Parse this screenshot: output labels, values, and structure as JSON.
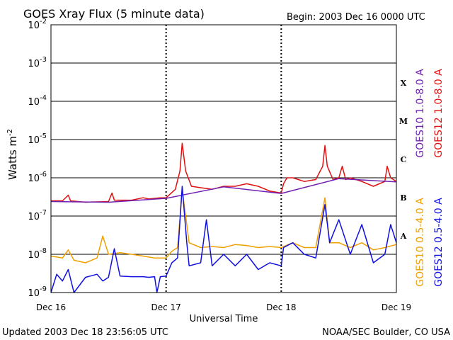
{
  "chart_data": {
    "type": "line",
    "title": "GOES Xray Flux (5 minute data)",
    "begin_label": "Begin:  2003 Dec 16 0000 UTC",
    "xlabel": "Universal Time",
    "ylabel": "Watts m",
    "ylabel_sup": "-2",
    "y_scale": "log",
    "ylim": [
      1e-09,
      0.01
    ],
    "y_ticks": [
      {
        "base": "10",
        "exp": "-9",
        "value": 1e-09
      },
      {
        "base": "10",
        "exp": "-8",
        "value": 1e-08
      },
      {
        "base": "10",
        "exp": "-7",
        "value": 1e-07
      },
      {
        "base": "10",
        "exp": "-6",
        "value": 1e-06
      },
      {
        "base": "10",
        "exp": "-5",
        "value": 1e-05
      },
      {
        "base": "10",
        "exp": "-4",
        "value": 0.0001
      },
      {
        "base": "10",
        "exp": "-3",
        "value": 0.001
      },
      {
        "base": "10",
        "exp": "-2",
        "value": 0.01
      }
    ],
    "x_ticks": [
      "Dec 16",
      "Dec 17",
      "Dec 18",
      "Dec 19"
    ],
    "x_days": 3,
    "flare_classes": [
      {
        "label": "X",
        "value": 0.0003
      },
      {
        "label": "M",
        "value": 3e-05
      },
      {
        "label": "C",
        "value": 3e-06
      },
      {
        "label": "B",
        "value": 3e-07
      },
      {
        "label": "A",
        "value": 3e-08
      }
    ],
    "grid": true,
    "legend_position": "right",
    "series": [
      {
        "name": "GOES12 1.0-8.0 A",
        "color": "#e01010",
        "points": [
          [
            0,
            2.5e-07
          ],
          [
            0.1,
            2.5e-07
          ],
          [
            0.15,
            3.5e-07
          ],
          [
            0.17,
            2.5e-07
          ],
          [
            0.3,
            2.3e-07
          ],
          [
            0.5,
            2.4e-07
          ],
          [
            0.53,
            4e-07
          ],
          [
            0.55,
            2.6e-07
          ],
          [
            0.7,
            2.6e-07
          ],
          [
            0.8,
            3e-07
          ],
          [
            0.85,
            2.8e-07
          ],
          [
            0.95,
            3e-07
          ],
          [
            1.0,
            3e-07
          ],
          [
            1.08,
            5e-07
          ],
          [
            1.12,
            1.5e-06
          ],
          [
            1.14,
            8e-06
          ],
          [
            1.17,
            1.5e-06
          ],
          [
            1.22,
            6e-07
          ],
          [
            1.3,
            5.5e-07
          ],
          [
            1.4,
            5e-07
          ],
          [
            1.5,
            6e-07
          ],
          [
            1.6,
            6e-07
          ],
          [
            1.7,
            7e-07
          ],
          [
            1.8,
            6e-07
          ],
          [
            1.9,
            4.5e-07
          ],
          [
            2.0,
            4e-07
          ],
          [
            2.02,
            7e-07
          ],
          [
            2.05,
            1e-06
          ],
          [
            2.1,
            1e-06
          ],
          [
            2.2,
            8e-07
          ],
          [
            2.3,
            9e-07
          ],
          [
            2.36,
            2e-06
          ],
          [
            2.38,
            7e-06
          ],
          [
            2.4,
            2e-06
          ],
          [
            2.45,
            9e-07
          ],
          [
            2.5,
            1e-06
          ],
          [
            2.53,
            2e-06
          ],
          [
            2.56,
            9e-07
          ],
          [
            2.6,
            1e-06
          ],
          [
            2.7,
            8e-07
          ],
          [
            2.8,
            6e-07
          ],
          [
            2.9,
            8e-07
          ],
          [
            2.92,
            2e-06
          ],
          [
            2.95,
            1e-06
          ],
          [
            3.0,
            8e-07
          ]
        ]
      },
      {
        "name": "GOES10 1.0-8.0 A",
        "color": "#7020b0",
        "points": [
          [
            0,
            2.4e-07
          ],
          [
            0.5,
            2.3e-07
          ],
          [
            1.0,
            2.9e-07
          ],
          [
            1.5,
            5.8e-07
          ],
          [
            2.0,
            3.9e-07
          ],
          [
            2.5,
            9.5e-07
          ],
          [
            3.0,
            7.8e-07
          ]
        ]
      },
      {
        "name": "GOES10 0.5-4.0 A",
        "color": "#f0a000",
        "points": [
          [
            0,
            9e-09
          ],
          [
            0.1,
            8e-09
          ],
          [
            0.15,
            1.3e-08
          ],
          [
            0.2,
            7e-09
          ],
          [
            0.3,
            6e-09
          ],
          [
            0.4,
            8e-09
          ],
          [
            0.45,
            3e-08
          ],
          [
            0.5,
            1e-08
          ],
          [
            0.6,
            1.1e-08
          ],
          [
            0.7,
            1e-08
          ],
          [
            0.8,
            9e-09
          ],
          [
            0.9,
            8e-09
          ],
          [
            1.0,
            8e-09
          ],
          [
            1.05,
            1.2e-08
          ],
          [
            1.1,
            1.5e-08
          ],
          [
            1.14,
            5e-07
          ],
          [
            1.2,
            2e-08
          ],
          [
            1.3,
            1.5e-08
          ],
          [
            1.4,
            1.6e-08
          ],
          [
            1.5,
            1.5e-08
          ],
          [
            1.6,
            1.8e-08
          ],
          [
            1.7,
            1.7e-08
          ],
          [
            1.8,
            1.5e-08
          ],
          [
            1.9,
            1.6e-08
          ],
          [
            2.0,
            1.5e-08
          ],
          [
            2.1,
            2e-08
          ],
          [
            2.2,
            1.5e-08
          ],
          [
            2.3,
            1.5e-08
          ],
          [
            2.38,
            3e-07
          ],
          [
            2.42,
            2e-08
          ],
          [
            2.5,
            2e-08
          ],
          [
            2.6,
            1.5e-08
          ],
          [
            2.7,
            2e-08
          ],
          [
            2.8,
            1.3e-08
          ],
          [
            2.9,
            1.5e-08
          ],
          [
            3.0,
            1.8e-08
          ]
        ]
      },
      {
        "name": "GOES12 0.5-4.0 A",
        "color": "#1010e0",
        "points": [
          [
            0,
            1e-09
          ],
          [
            0.05,
            3e-09
          ],
          [
            0.1,
            2e-09
          ],
          [
            0.15,
            4e-09
          ],
          [
            0.2,
            1e-09
          ],
          [
            0.3,
            2.5e-09
          ],
          [
            0.4,
            3e-09
          ],
          [
            0.45,
            2e-09
          ],
          [
            0.5,
            2.5e-09
          ],
          [
            0.55,
            1.4e-08
          ],
          [
            0.6,
            2.7e-09
          ],
          [
            0.7,
            2.6e-09
          ],
          [
            0.8,
            2.6e-09
          ],
          [
            0.85,
            2.5e-09
          ],
          [
            0.9,
            2.6e-09
          ],
          [
            0.92,
            1e-09
          ],
          [
            0.95,
            2.6e-09
          ],
          [
            1.0,
            2.7e-09
          ],
          [
            1.05,
            6e-09
          ],
          [
            1.1,
            8e-09
          ],
          [
            1.14,
            6e-07
          ],
          [
            1.18,
            2e-08
          ],
          [
            1.2,
            5e-09
          ],
          [
            1.3,
            6e-09
          ],
          [
            1.35,
            8e-08
          ],
          [
            1.4,
            5e-09
          ],
          [
            1.5,
            1e-08
          ],
          [
            1.6,
            5e-09
          ],
          [
            1.7,
            1e-08
          ],
          [
            1.8,
            4e-09
          ],
          [
            1.9,
            6e-09
          ],
          [
            2.0,
            5e-09
          ],
          [
            2.02,
            1.5e-08
          ],
          [
            2.1,
            2e-08
          ],
          [
            2.2,
            1e-08
          ],
          [
            2.3,
            8e-09
          ],
          [
            2.38,
            2e-07
          ],
          [
            2.42,
            2e-08
          ],
          [
            2.5,
            8e-08
          ],
          [
            2.6,
            1e-08
          ],
          [
            2.7,
            6e-08
          ],
          [
            2.8,
            6e-09
          ],
          [
            2.9,
            1e-08
          ],
          [
            2.95,
            6e-08
          ],
          [
            3.0,
            2e-08
          ]
        ]
      }
    ]
  },
  "footer": {
    "updated": "Updated 2003 Dec 18 23:56:05 UTC",
    "credit": "NOAA/SEC Boulder, CO USA"
  }
}
